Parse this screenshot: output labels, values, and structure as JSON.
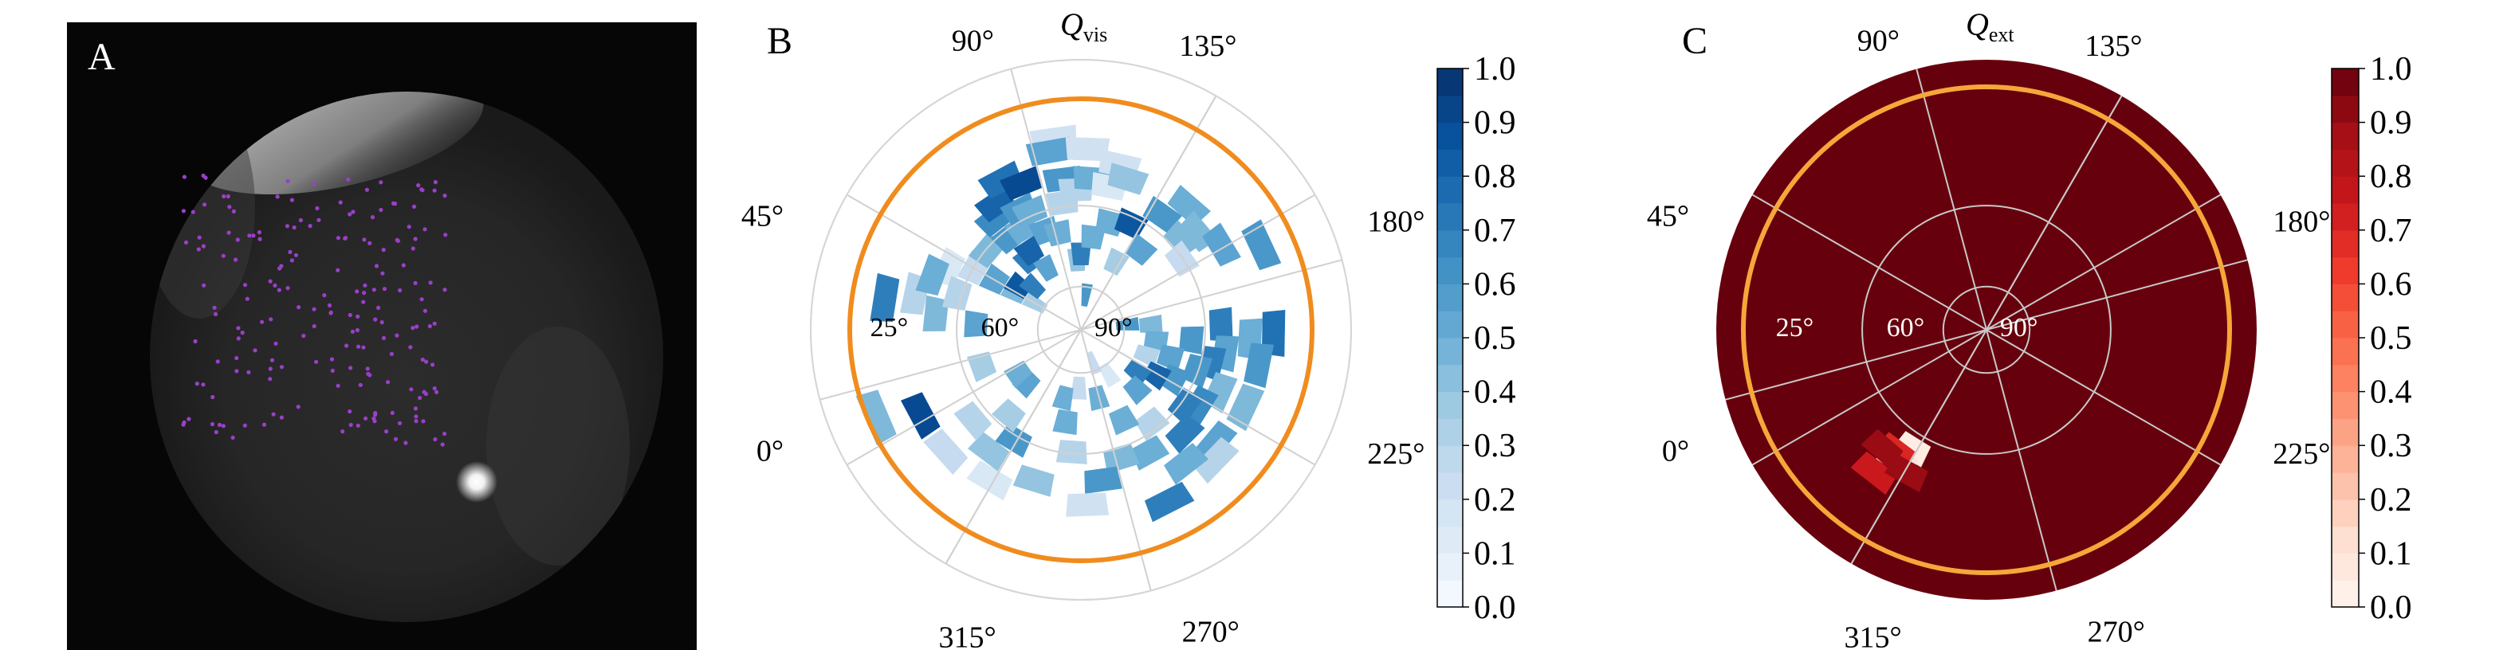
{
  "panels": {
    "a": {
      "letter": "A"
    },
    "b": {
      "letter": "B"
    },
    "c": {
      "letter": "C"
    }
  },
  "chart_data": [
    {
      "type": "heatmap",
      "panel": "B",
      "projection": "polar",
      "title_symbol": "Q",
      "title_subscript": "vis",
      "azimuth_labels": [
        "0°",
        "45°",
        "90°",
        "135°",
        "180°",
        "225°",
        "270°",
        "315°"
      ],
      "radial_labels": [
        "25°",
        "60°",
        "90°"
      ],
      "colorbar": {
        "ticks": [
          "0.0",
          "0.1",
          "0.2",
          "0.3",
          "0.4",
          "0.5",
          "0.6",
          "0.7",
          "0.8",
          "0.9",
          "1.0"
        ],
        "min": 0,
        "max": 1,
        "steps": 20
      },
      "colormap": [
        "#f7fbff",
        "#08306b"
      ],
      "ring_color": "#f08c1e",
      "grid": true,
      "cells": [
        [
          150,
          21,
          0.25
        ],
        [
          150,
          17,
          0.55
        ],
        [
          150,
          13,
          0.45
        ],
        [
          150,
          9,
          0.35
        ],
        [
          155,
          25,
          0.15
        ],
        [
          145,
          13,
          0.85
        ],
        [
          140,
          21,
          0.45
        ],
        [
          138,
          11,
          0.7
        ],
        [
          128,
          20,
          0.6
        ],
        [
          127,
          15,
          0.7
        ],
        [
          123,
          16,
          0.8
        ],
        [
          128,
          24,
          0.65
        ],
        [
          124,
          26,
          0.8
        ],
        [
          120,
          20,
          0.5
        ],
        [
          119,
          12,
          0.55
        ],
        [
          117,
          23,
          0.6
        ],
        [
          118,
          29,
          0.75
        ],
        [
          113,
          22,
          0.5
        ],
        [
          112,
          27,
          0.9
        ],
        [
          110,
          18,
          0.55
        ],
        [
          103,
          17,
          0.5
        ],
        [
          98,
          22,
          0.3
        ],
        [
          98,
          33,
          0.2
        ],
        [
          93,
          12,
          0.4
        ],
        [
          100,
          31,
          0.55
        ],
        [
          97,
          26,
          0.6
        ],
        [
          92,
          24,
          0.3
        ],
        [
          90,
          13,
          0.7
        ],
        [
          88,
          31,
          0.2
        ],
        [
          86,
          26,
          0.5
        ],
        [
          83,
          16,
          0.5
        ],
        [
          82,
          6,
          0.6
        ],
        [
          79,
          25,
          0.15
        ],
        [
          75,
          19,
          0.5
        ],
        [
          77,
          29,
          0.2
        ],
        [
          73,
          27,
          0.4
        ],
        [
          65,
          20,
          0.85
        ],
        [
          63,
          13,
          0.35
        ],
        [
          55,
          24,
          0.6
        ],
        [
          53,
          17,
          0.55
        ],
        [
          49,
          28,
          0.5
        ],
        [
          42,
          23,
          0.45
        ],
        [
          40,
          26,
          0.45
        ],
        [
          35,
          21,
          0.25
        ],
        [
          31,
          28,
          0.55
        ],
        [
          25,
          34,
          0.6
        ],
        [
          6,
          8,
          0.6
        ],
        [
          4,
          12,
          0.45
        ],
        [
          2,
          24,
          0.7
        ],
        [
          -1,
          33,
          0.75
        ],
        [
          -3,
          29,
          0.5
        ],
        [
          -5,
          19,
          0.6
        ],
        [
          -8,
          13,
          0.5
        ],
        [
          -9,
          25,
          0.55
        ],
        [
          -11,
          31,
          0.6
        ],
        [
          -14,
          23,
          0.7
        ],
        [
          -17,
          16,
          0.55
        ],
        [
          -19,
          21,
          0.6
        ],
        [
          -21,
          12,
          0.3
        ],
        [
          -24,
          26,
          0.45
        ],
        [
          -25,
          31,
          0.45
        ],
        [
          -28,
          18,
          0.6
        ],
        [
          -31,
          15,
          0.8
        ],
        [
          -32,
          24,
          0.65
        ],
        [
          -36,
          22,
          0.7
        ],
        [
          -37,
          12,
          0.7
        ],
        [
          -40,
          30,
          0.55
        ],
        [
          -44,
          32,
          0.3
        ],
        [
          -45,
          25,
          0.7
        ],
        [
          -47,
          14,
          0.55
        ],
        [
          -52,
          29,
          0.5
        ],
        [
          -53,
          20,
          0.3
        ],
        [
          -58,
          9,
          0.15
        ],
        [
          -61,
          24,
          0.5
        ],
        [
          -63,
          33,
          0.7
        ],
        [
          -65,
          17,
          0.5
        ],
        [
          -70,
          6,
          0.25
        ],
        [
          -73,
          23,
          0.45
        ],
        [
          -76,
          12,
          0.5
        ],
        [
          -82,
          26,
          0.6
        ],
        [
          -88,
          30,
          0.2
        ],
        [
          -92,
          10,
          0.25
        ],
        [
          -94,
          21,
          0.3
        ],
        [
          -99,
          16,
          0.5
        ],
        [
          -104,
          12,
          0.5
        ],
        [
          -107,
          27,
          0.4
        ],
        [
          -121,
          22,
          0.6
        ],
        [
          -121,
          30,
          0.15
        ],
        [
          -127,
          26,
          0.4
        ],
        [
          -130,
          19,
          0.35
        ],
        [
          -135,
          13,
          0.55
        ],
        [
          -138,
          31,
          0.25
        ],
        [
          -140,
          24,
          0.3
        ],
        [
          -145,
          13,
          0.5
        ],
        [
          -152,
          31,
          0.9
        ],
        [
          -157,
          38,
          0.45
        ],
        [
          -160,
          18,
          0.35
        ],
        [
          177,
          18,
          0.55
        ],
        [
          174,
          25,
          0.45
        ],
        [
          171,
          34,
          0.7
        ],
        [
          168,
          29,
          0.3
        ],
        [
          164,
          22,
          0.3
        ],
        [
          160,
          27,
          0.5
        ]
      ]
    },
    {
      "type": "heatmap",
      "panel": "C",
      "projection": "polar",
      "title_symbol": "Q",
      "title_subscript": "ext",
      "azimuth_labels": [
        "0°",
        "45°",
        "90°",
        "135°",
        "180°",
        "225°",
        "270°",
        "315°"
      ],
      "radial_labels": [
        "25°",
        "60°",
        "90°"
      ],
      "colorbar": {
        "ticks": [
          "0.0",
          "0.1",
          "0.2",
          "0.3",
          "0.4",
          "0.5",
          "0.6",
          "0.7",
          "0.8",
          "0.9",
          "1.0"
        ],
        "min": 0,
        "max": 1,
        "steps": 20
      },
      "colormap": [
        "#fff5f0",
        "#67000d"
      ],
      "ring_color": "#f6a73a",
      "grid": true,
      "background_value": 1.0,
      "cells": [
        [
          -122,
          24,
          0.05
        ],
        [
          -124,
          27,
          0.1
        ],
        [
          -127,
          26,
          0.7
        ],
        [
          -128,
          31,
          0.75
        ],
        [
          -131,
          27,
          0.9
        ],
        [
          -119,
          28,
          0.9
        ]
      ]
    }
  ]
}
